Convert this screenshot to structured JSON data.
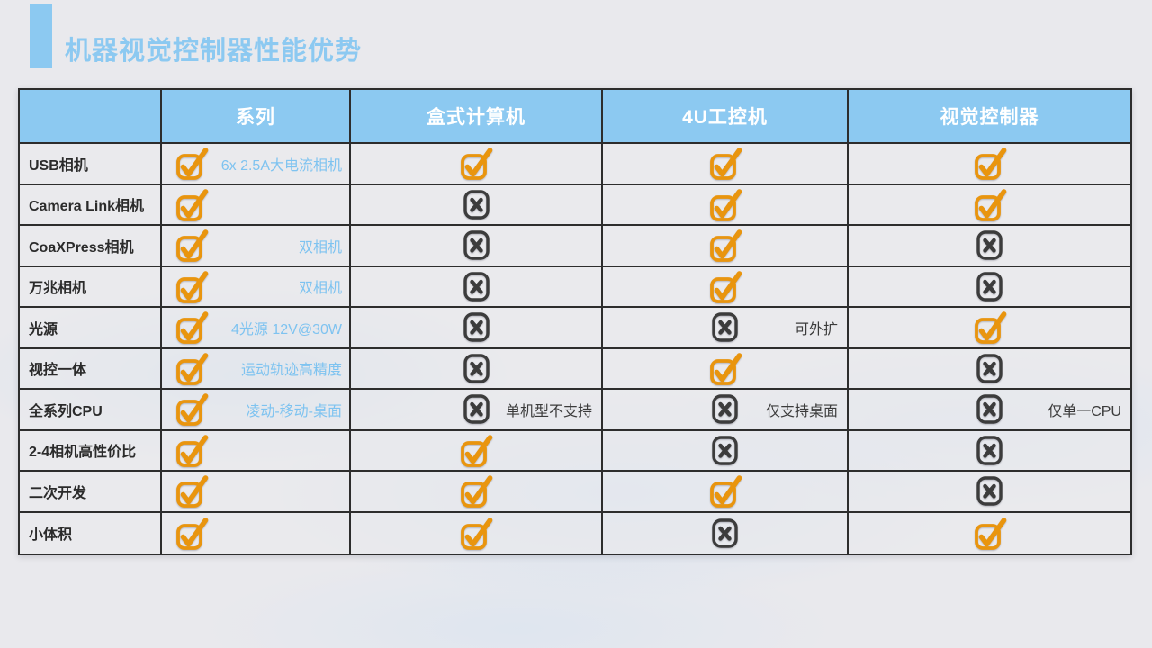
{
  "page": {
    "title": "机器视觉控制器性能优势"
  },
  "colors": {
    "accent_blue": "#8CC9F1",
    "note_blue": "#7EC3F0",
    "check_orange": "#E9950E",
    "cross_gray": "#3C3C3C",
    "border_dark": "#2D2D2D"
  },
  "icons": {
    "check": "check-icon",
    "cross": "cross-icon"
  },
  "table": {
    "columns": [
      "",
      "系列",
      "盒式计算机",
      "4U工控机",
      "视觉控制器"
    ],
    "rows": [
      {
        "label": "USB相机",
        "cells": [
          {
            "icon": "check",
            "note": "6x 2.5A大电流相机",
            "note_color": "blue"
          },
          {
            "icon": "check"
          },
          {
            "icon": "check"
          },
          {
            "icon": "check"
          }
        ]
      },
      {
        "label": "Camera Link相机",
        "cells": [
          {
            "icon": "check"
          },
          {
            "icon": "cross"
          },
          {
            "icon": "check"
          },
          {
            "icon": "check"
          }
        ]
      },
      {
        "label": "CoaXPress相机",
        "cells": [
          {
            "icon": "check",
            "note": "双相机",
            "note_color": "blue"
          },
          {
            "icon": "cross"
          },
          {
            "icon": "check"
          },
          {
            "icon": "cross"
          }
        ]
      },
      {
        "label": "万兆相机",
        "cells": [
          {
            "icon": "check",
            "note": "双相机",
            "note_color": "blue"
          },
          {
            "icon": "cross"
          },
          {
            "icon": "check"
          },
          {
            "icon": "cross"
          }
        ]
      },
      {
        "label": "光源",
        "cells": [
          {
            "icon": "check",
            "note": "4光源 12V@30W",
            "note_color": "blue"
          },
          {
            "icon": "cross"
          },
          {
            "icon": "cross",
            "note": "可外扩",
            "note_color": "dark"
          },
          {
            "icon": "check"
          }
        ]
      },
      {
        "label": "视控一体",
        "cells": [
          {
            "icon": "check",
            "note": "运动轨迹高精度",
            "note_color": "blue"
          },
          {
            "icon": "cross"
          },
          {
            "icon": "check"
          },
          {
            "icon": "cross"
          }
        ]
      },
      {
        "label": "全系列CPU",
        "cells": [
          {
            "icon": "check",
            "note": "凌动-移动-桌面",
            "note_color": "blue"
          },
          {
            "icon": "cross",
            "note": "单机型不支持",
            "note_color": "dark"
          },
          {
            "icon": "cross",
            "note": "仅支持桌面",
            "note_color": "dark"
          },
          {
            "icon": "cross",
            "note": "仅单一CPU",
            "note_color": "dark"
          }
        ]
      },
      {
        "label": "2-4相机高性价比",
        "cells": [
          {
            "icon": "check"
          },
          {
            "icon": "check"
          },
          {
            "icon": "cross"
          },
          {
            "icon": "cross"
          }
        ]
      },
      {
        "label": "二次开发",
        "cells": [
          {
            "icon": "check"
          },
          {
            "icon": "check"
          },
          {
            "icon": "check"
          },
          {
            "icon": "cross"
          }
        ]
      },
      {
        "label": "小体积",
        "cells": [
          {
            "icon": "check"
          },
          {
            "icon": "check"
          },
          {
            "icon": "cross"
          },
          {
            "icon": "check"
          }
        ]
      }
    ]
  }
}
